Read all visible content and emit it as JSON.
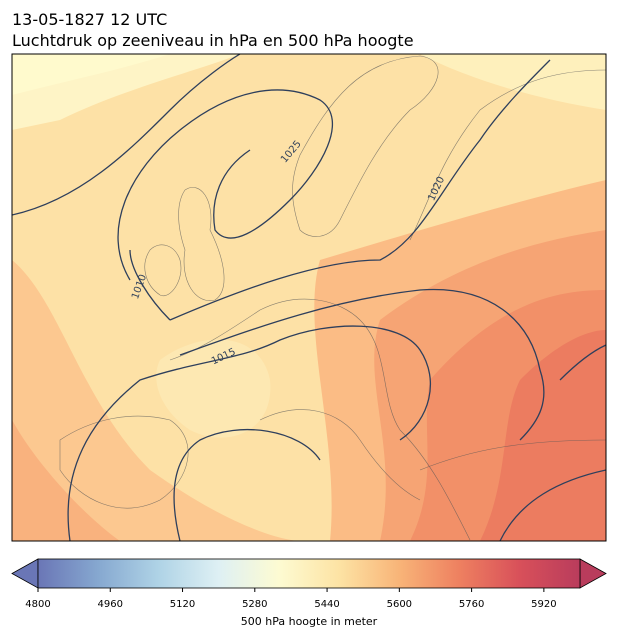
{
  "header": {
    "date": "13-05-1827 12 UTC",
    "title": "Luchtdruk op zeeniveau in hPa en 500 hPa hoogte"
  },
  "map": {
    "contour_labels": [
      "1025",
      "1020",
      "1015",
      "1010"
    ]
  },
  "colorbar": {
    "label": "500 hPa hoogte in meter",
    "clim": [
      4800,
      6000
    ],
    "ticks": [
      4800,
      4960,
      5120,
      5280,
      5440,
      5600,
      5760,
      5920
    ],
    "colormap": [
      "#6a76b6",
      "#86a8d0",
      "#afd3e6",
      "#def0f4",
      "#fdfbd2",
      "#fde3a4",
      "#f8b478",
      "#ee8060",
      "#d8505a",
      "#b93c5c"
    ]
  }
}
